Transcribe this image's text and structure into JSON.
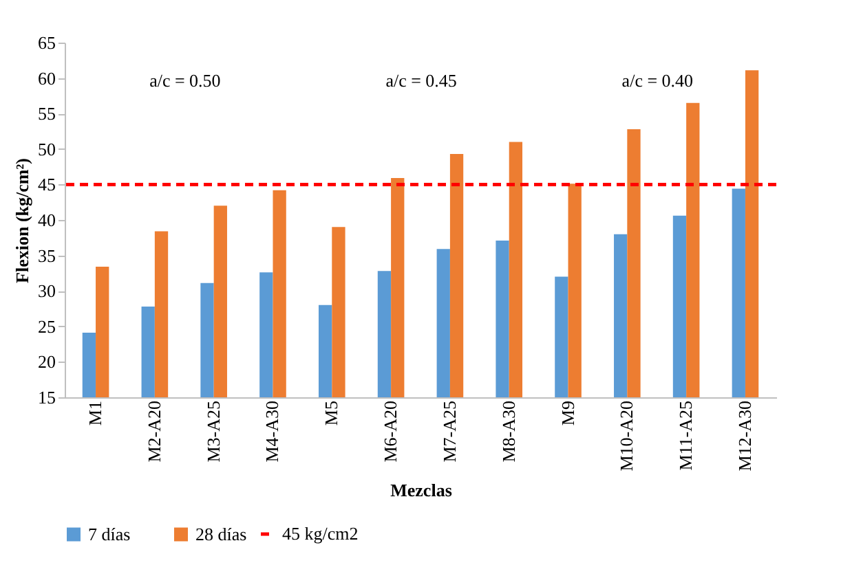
{
  "chart_data": {
    "type": "bar",
    "xlabel": "Mezclas",
    "ylabel": "Flexion (kg/cm²)",
    "categories": [
      "M1",
      "M2-A20",
      "M3-A25",
      "M4-A30",
      "M5",
      "M6-A20",
      "M7-A25",
      "M8-A30",
      "M9",
      "M10-A20",
      "M11-A25",
      "M12-A30"
    ],
    "series": [
      {
        "name": "7 días",
        "color": "#5b9bd5",
        "values": [
          24.1,
          27.8,
          31.1,
          32.6,
          28.0,
          32.8,
          35.9,
          37.1,
          32.0,
          38.0,
          40.6,
          44.4
        ]
      },
      {
        "name": "28 días",
        "color": "#ed7d31",
        "values": [
          33.4,
          38.4,
          42.0,
          44.2,
          39.0,
          45.9,
          49.3,
          51.0,
          45.1,
          52.8,
          56.5,
          61.1
        ]
      }
    ],
    "ylim": [
      15,
      65
    ],
    "yticks": [
      15,
      20,
      25,
      30,
      35,
      40,
      45,
      50,
      55,
      60,
      65
    ],
    "grid": false,
    "legend": "bottom",
    "ref_lines": [
      {
        "axis": "y",
        "value": 45,
        "label": "45 kg/cm2",
        "color": "#ff0000",
        "line_style": "dashed"
      }
    ],
    "annotations": [
      "a/c = 0.50",
      "a/c = 0.45",
      "a/c = 0.40"
    ]
  }
}
